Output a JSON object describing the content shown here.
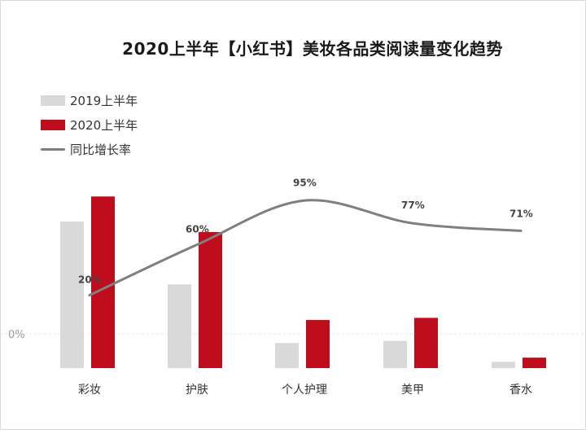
{
  "colors": {
    "bar_2019": "#d9d9d9",
    "bar_2020": "#c00d1e",
    "line": "#7f7f7f"
  },
  "chart_data": {
    "type": "bar",
    "title": "2020上半年【小红书】美妆各品类阅读量变化趋势",
    "categories": [
      "彩妆",
      "护肤",
      "个人护理",
      "美甲",
      "香水"
    ],
    "series": [
      {
        "name": "2019上半年",
        "type": "bar",
        "values": [
          70,
          40,
          12,
          13,
          3
        ]
      },
      {
        "name": "2020上半年",
        "type": "bar",
        "values": [
          82,
          65,
          23,
          24,
          5
        ]
      },
      {
        "name": "同比增长率",
        "type": "line",
        "values": [
          20,
          60,
          95,
          77,
          71
        ],
        "labels": [
          "20%",
          "60%",
          "95%",
          "77%",
          "71%"
        ]
      }
    ],
    "zero_label": "0%",
    "legend": "top-left",
    "grid": false
  }
}
